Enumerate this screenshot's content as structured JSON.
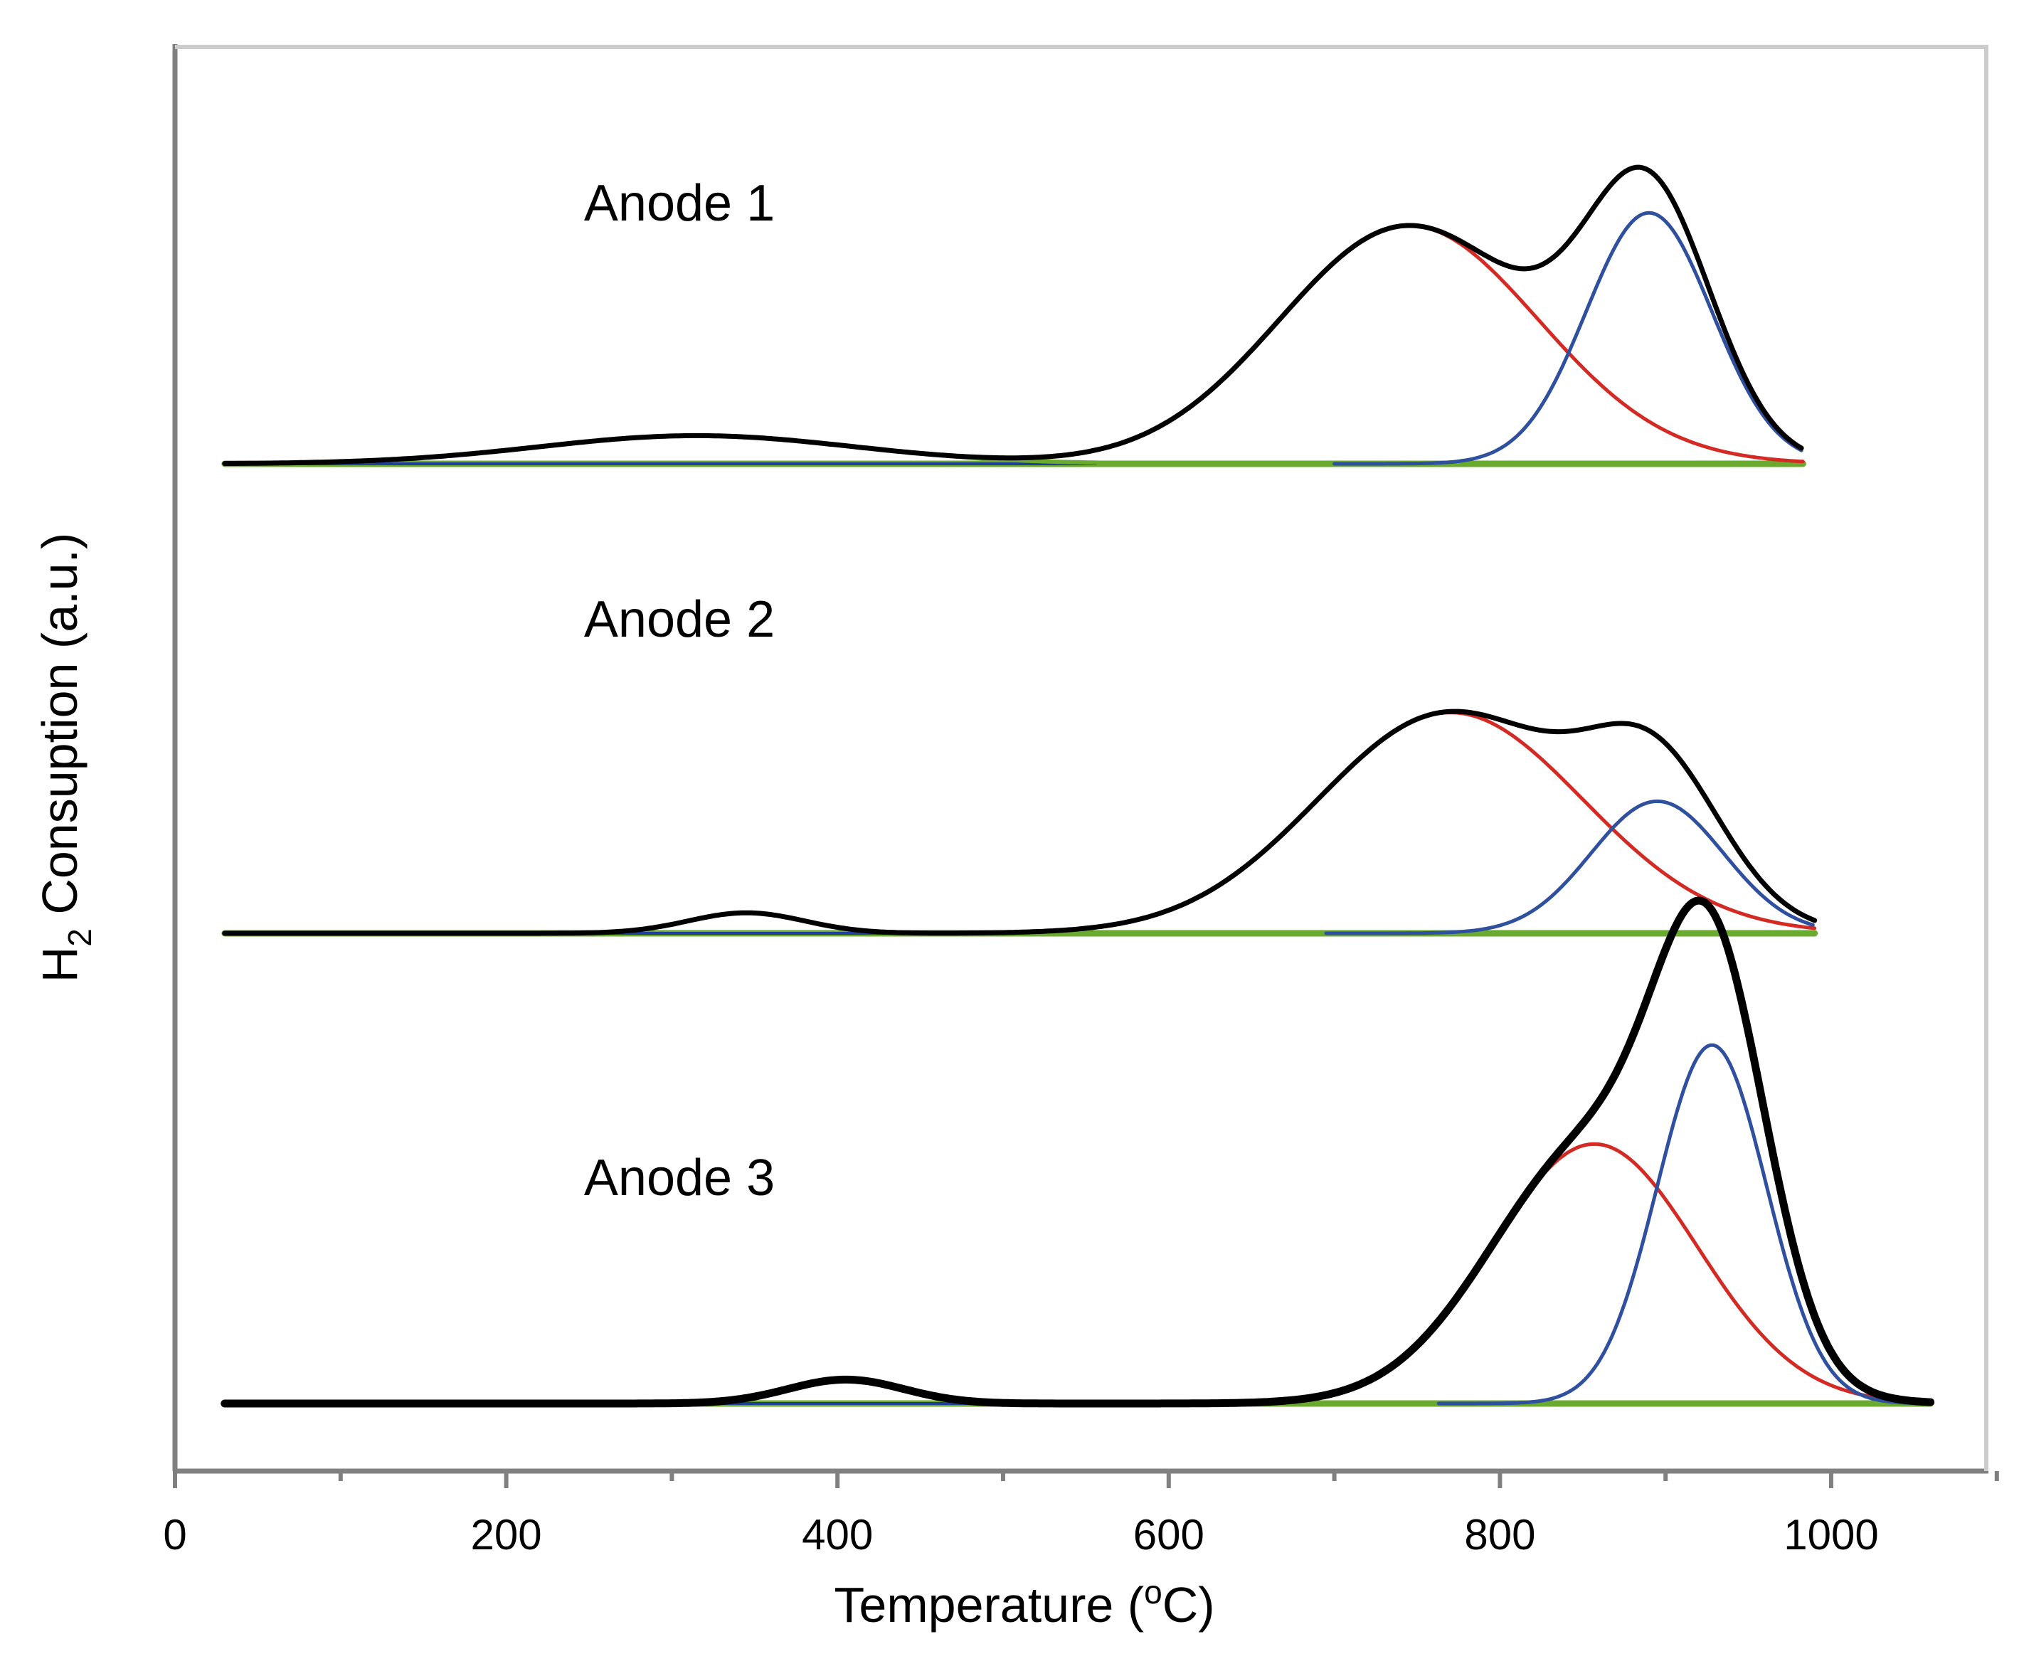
{
  "chart_data": {
    "type": "line",
    "title": "",
    "xlabel": "Temperature (oC)",
    "xlabel_parts": {
      "pre": "Temperature (",
      "sup": "o",
      "post": "C)"
    },
    "ylabel": "H2 Consuption (a.u.)",
    "ylabel_parts": {
      "pre": "H",
      "sub": "2",
      "post": " Consuption (a.u.)"
    },
    "xlim": [
      0,
      1100
    ],
    "x_ticks": [
      0,
      200,
      400,
      600,
      800,
      1000
    ],
    "x_tick_labels": [
      "0",
      "200",
      "400",
      "600",
      "800",
      "1000"
    ],
    "x_minor_ticks": [
      100,
      300,
      500,
      700,
      900,
      1100
    ],
    "y_ticks": [],
    "grid": false,
    "legend": "none",
    "series_colors": {
      "baseline": "#6aaa2e",
      "low_temp_peak": "#1f3f99",
      "peak_mid": "#d42a24",
      "peak_high": "#2f4f9f",
      "total": "#000000"
    },
    "panels": [
      {
        "label": "Anode 1",
        "x_range": [
          30,
          983
        ],
        "baseline": 0,
        "total_width": "normal",
        "peaks": [
          {
            "name": "low",
            "center": 315,
            "height": 0.11,
            "sigma": 95
          },
          {
            "name": "mid",
            "center": 745,
            "height": 0.93,
            "sigma": 78
          },
          {
            "name": "high",
            "center": 890,
            "height": 0.98,
            "sigma": 38
          }
        ]
      },
      {
        "label": "Anode 2",
        "x_range": [
          30,
          990
        ],
        "baseline": 0,
        "total_width": "normal",
        "peaks": [
          {
            "name": "low",
            "center": 345,
            "height": 0.09,
            "sigma": 35
          },
          {
            "name": "mid",
            "center": 770,
            "height": 0.97,
            "sigma": 80
          },
          {
            "name": "high",
            "center": 895,
            "height": 0.58,
            "sigma": 40
          }
        ]
      },
      {
        "label": "Anode 3",
        "x_range": [
          30,
          1060
        ],
        "baseline": 0,
        "total_width": "bold",
        "peaks": [
          {
            "name": "low",
            "center": 405,
            "height": 0.07,
            "sigma": 35
          },
          {
            "name": "mid",
            "center": 857,
            "height": 0.76,
            "sigma": 62
          },
          {
            "name": "high",
            "center": 928,
            "height": 1.05,
            "sigma": 33
          }
        ]
      }
    ]
  }
}
